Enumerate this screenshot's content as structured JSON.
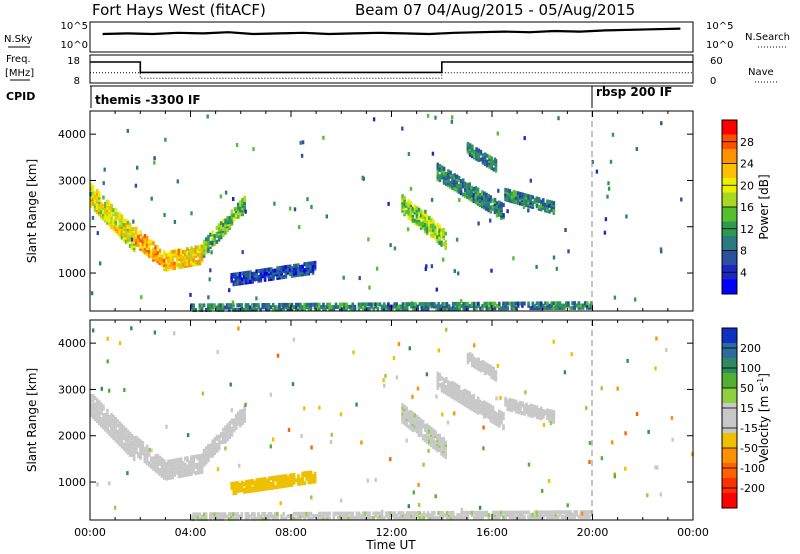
{
  "title": {
    "radar": "Fort Hays West (fitACF)",
    "info": "Beam 07  04/Aug/2015 - 05/Aug/2015"
  },
  "strip": {
    "nsky_label": "N.Sky",
    "nsearch_label": "N.Search",
    "nsky_ticks": [
      "10^5",
      "10^0"
    ],
    "nsearch_ticks": [
      "10^5",
      "10^0"
    ],
    "freq_label_1": "Freq.",
    "freq_label_2": "[MHz]",
    "freq_ticks": [
      "18",
      "8"
    ],
    "nave_label": "Nave",
    "nave_ticks": [
      "60",
      "0"
    ],
    "cpid_label": "CPID",
    "cpid_1": "themis -3300 IF",
    "cpid_2": "rbsp 200 IF"
  },
  "chart_data": [
    {
      "type": "line",
      "name": "noise",
      "series": [
        {
          "name": "N.Sky",
          "style": "solid",
          "y_log10": [
            3.0,
            3.1,
            3.0,
            3.2,
            3.1,
            3.3,
            3.0,
            3.1,
            3.2,
            3.0,
            3.1,
            3.2,
            3.1,
            3.0,
            3.2,
            3.3,
            3.4,
            3.3,
            3.5,
            3.4,
            3.6,
            3.7,
            3.8,
            3.9
          ]
        },
        {
          "name": "N.Search",
          "style": "dotted",
          "y_log10": [
            2.9,
            3.0,
            2.9,
            3.1,
            3.0,
            3.2,
            2.9,
            3.0,
            3.1,
            2.9,
            3.0,
            3.1,
            3.0,
            2.9,
            3.1,
            3.2,
            3.3,
            3.2,
            3.4,
            3.3,
            3.5,
            3.6,
            3.7,
            3.8
          ]
        }
      ],
      "xlim": [
        0,
        24
      ],
      "ylim_log10": [
        0,
        5
      ]
    },
    {
      "type": "line",
      "name": "frequency and nave",
      "series": [
        {
          "name": "Freq.",
          "units": "MHz",
          "style": "solid",
          "steps": [
            [
              0,
              2,
              15.5
            ],
            [
              2,
              14,
              11.8
            ],
            [
              14,
              24,
              15.5
            ]
          ]
        },
        {
          "name": "Nave",
          "style": "dotted",
          "steps": [
            [
              0,
              2,
              22
            ],
            [
              2,
              14,
              10
            ],
            [
              14,
              24,
              22
            ]
          ]
        }
      ],
      "xlim": [
        0,
        24
      ],
      "ylim_freq": [
        8,
        18
      ],
      "ylim_nave": [
        0,
        60
      ]
    },
    {
      "type": "heatmap",
      "name": "power",
      "ylabel": "Slant Range [km]",
      "xlim": [
        0,
        24
      ],
      "ylim": [
        180,
        4500
      ],
      "yticks": [
        "1000",
        "2000",
        "3000",
        "4000"
      ],
      "colorbar_label": "Power [dB]",
      "colorbar_ticks": [
        "28",
        "24",
        "20",
        "16",
        "12",
        "8",
        "4"
      ],
      "colorbar_colors": [
        "#ff0000",
        "#ff5000",
        "#ff9400",
        "#ffc000",
        "#eeee00",
        "#a8d820",
        "#54c030",
        "#2e9a50",
        "#2c7a80",
        "#2c50a0",
        "#1a28c0",
        "#0000ff"
      ],
      "vline_time": 20.0,
      "regions": [
        {
          "t0": 0.0,
          "t1": 1.8,
          "r0": 2700,
          "r1": 1700,
          "thick": 500,
          "p": 20
        },
        {
          "t0": 1.8,
          "t1": 3.0,
          "r0": 1800,
          "r1": 1250,
          "thick": 400,
          "p": 24
        },
        {
          "t0": 3.0,
          "t1": 4.5,
          "r0": 1250,
          "r1": 1400,
          "thick": 400,
          "p": 22
        },
        {
          "t0": 4.5,
          "t1": 6.2,
          "r0": 1500,
          "r1": 2500,
          "thick": 350,
          "p": 14
        },
        {
          "t0": 5.6,
          "t1": 9.0,
          "r0": 850,
          "r1": 1120,
          "thick": 250,
          "p": 6
        },
        {
          "t0": 12.4,
          "t1": 14.2,
          "r0": 2500,
          "r1": 1700,
          "thick": 400,
          "p": 16
        },
        {
          "t0": 13.8,
          "t1": 16.5,
          "r0": 3200,
          "r1": 2300,
          "thick": 350,
          "p": 10
        },
        {
          "t0": 15.0,
          "t1": 16.2,
          "r0": 3700,
          "r1": 3300,
          "thick": 250,
          "p": 10
        },
        {
          "t0": 16.5,
          "t1": 18.5,
          "r0": 2700,
          "r1": 2400,
          "thick": 250,
          "p": 10
        },
        {
          "t0": 4.0,
          "t1": 20.0,
          "r0": 250,
          "r1": 300,
          "thick": 150,
          "p": 10
        }
      ]
    },
    {
      "type": "heatmap",
      "name": "velocity",
      "xlabel": "Time UT",
      "ylabel": "Slant Range [km]",
      "xlim": [
        0,
        24
      ],
      "ylim": [
        180,
        4500
      ],
      "xticks": [
        "00:00",
        "04:00",
        "08:00",
        "12:00",
        "16:00",
        "20:00",
        "00:00"
      ],
      "yticks": [
        "1000",
        "2000",
        "3000",
        "4000"
      ],
      "colorbar_label": "Velocity [m s",
      "colorbar_label_sup": "-1",
      "colorbar_label_end": "]",
      "colorbar_ticks": [
        "200",
        "100",
        "50",
        "15",
        "-15",
        "-50",
        "-100",
        "-200"
      ],
      "colorbar_colors": [
        "#1030c0",
        "#2c6aa0",
        "#2c8a60",
        "#50b030",
        "#90d040",
        "#c8c8c8",
        "#c8c8c8",
        "#eec000",
        "#ff9000",
        "#ff6000",
        "#ff3000",
        "#ff0000"
      ],
      "vline_time": 20.0,
      "regions": [
        {
          "t0": 0.0,
          "t1": 1.8,
          "r0": 2700,
          "r1": 1700,
          "thick": 500,
          "v": 0
        },
        {
          "t0": 1.8,
          "t1": 3.0,
          "r0": 1800,
          "r1": 1250,
          "thick": 400,
          "v": 0
        },
        {
          "t0": 3.0,
          "t1": 4.5,
          "r0": 1250,
          "r1": 1400,
          "thick": 400,
          "v": 0
        },
        {
          "t0": 4.5,
          "t1": 6.2,
          "r0": 1500,
          "r1": 2500,
          "thick": 350,
          "v": 0
        },
        {
          "t0": 5.6,
          "t1": 9.0,
          "r0": 850,
          "r1": 1120,
          "thick": 250,
          "v": -60
        },
        {
          "t0": 12.4,
          "t1": 14.2,
          "r0": 2500,
          "r1": 1700,
          "thick": 400,
          "v": 30
        },
        {
          "t0": 13.8,
          "t1": 16.5,
          "r0": 3200,
          "r1": 2300,
          "thick": 350,
          "v": 0
        },
        {
          "t0": 15.0,
          "t1": 16.2,
          "r0": 3700,
          "r1": 3300,
          "thick": 250,
          "v": 0
        },
        {
          "t0": 16.5,
          "t1": 18.5,
          "r0": 2700,
          "r1": 2400,
          "thick": 250,
          "v": 0
        },
        {
          "t0": 4.0,
          "t1": 20.0,
          "r0": 250,
          "r1": 300,
          "thick": 150,
          "v": 30
        }
      ]
    }
  ]
}
